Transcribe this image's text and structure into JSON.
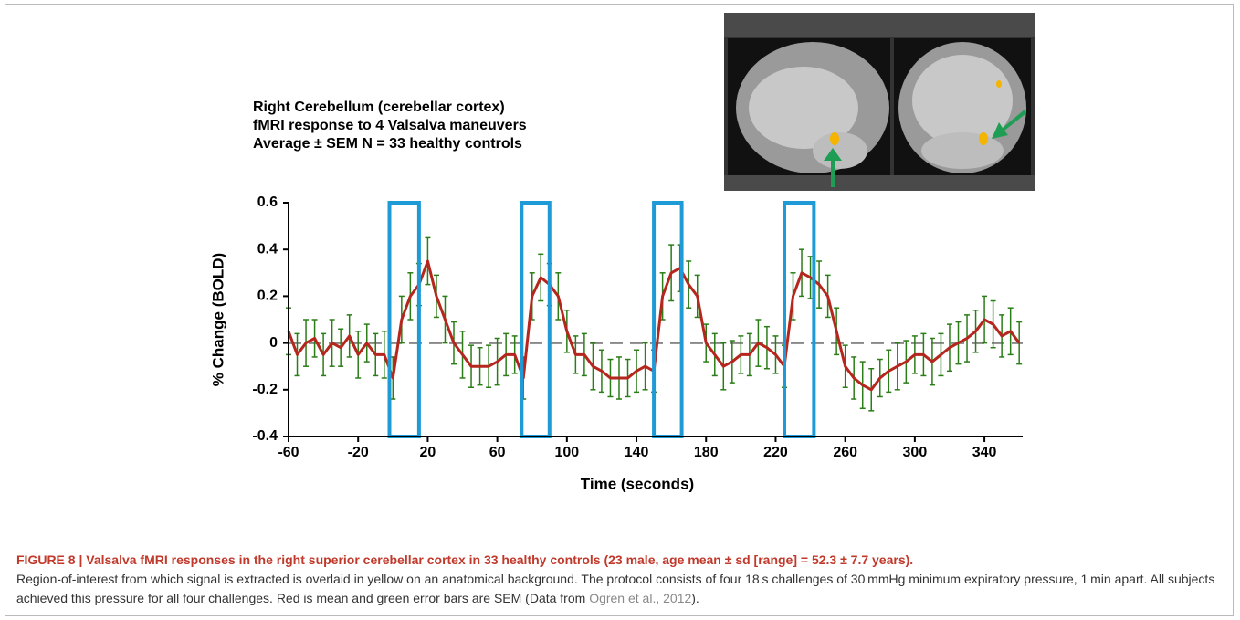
{
  "chart_data": {
    "type": "line",
    "title": [
      "Right Cerebellum (cerebellar cortex)",
      "fMRI response to 4 Valsalva maneuvers",
      "Average ± SEM N = 33 healthy controls"
    ],
    "x_label": "Time (seconds)",
    "y_label": "% Change (BOLD)",
    "xlim": [
      -60,
      362
    ],
    "ylim": [
      -0.4,
      0.6
    ],
    "xticks": [
      -60,
      -20,
      20,
      60,
      100,
      140,
      180,
      220,
      260,
      300,
      340
    ],
    "yticks": [
      -0.4,
      -0.2,
      0,
      0.2,
      0.4,
      0.6
    ],
    "reference_line": 0,
    "challenges": [
      [
        -2,
        15
      ],
      [
        74,
        90
      ],
      [
        150,
        166
      ],
      [
        225,
        242
      ]
    ],
    "challenge_color": "#1e9ad6",
    "x": [
      -60,
      -55,
      -50,
      -45,
      -40,
      -35,
      -30,
      -25,
      -20,
      -15,
      -10,
      -5,
      0,
      5,
      10,
      15,
      20,
      25,
      30,
      35,
      40,
      45,
      50,
      55,
      60,
      65,
      70,
      75,
      80,
      85,
      90,
      95,
      100,
      105,
      110,
      115,
      120,
      125,
      130,
      135,
      140,
      145,
      150,
      155,
      160,
      165,
      170,
      175,
      180,
      185,
      190,
      195,
      200,
      205,
      210,
      215,
      220,
      225,
      230,
      235,
      240,
      245,
      250,
      255,
      260,
      265,
      270,
      275,
      280,
      285,
      290,
      295,
      300,
      305,
      310,
      315,
      320,
      325,
      330,
      335,
      340,
      345,
      350,
      355,
      360
    ],
    "series": [
      {
        "color": "#b5261e",
        "error_color": "#2a7d17",
        "values": [
          0.05,
          -0.05,
          0,
          0.02,
          -0.05,
          0,
          -0.02,
          0.03,
          -0.05,
          0,
          -0.05,
          -0.05,
          -0.15,
          0.1,
          0.2,
          0.25,
          0.35,
          0.2,
          0.1,
          0,
          -0.05,
          -0.1,
          -0.1,
          -0.1,
          -0.08,
          -0.05,
          -0.05,
          -0.15,
          0.2,
          0.28,
          0.25,
          0.2,
          0.05,
          -0.05,
          -0.05,
          -0.1,
          -0.12,
          -0.15,
          -0.15,
          -0.15,
          -0.12,
          -0.1,
          -0.12,
          0.2,
          0.3,
          0.32,
          0.25,
          0.2,
          0,
          -0.05,
          -0.1,
          -0.08,
          -0.05,
          -0.05,
          0,
          -0.02,
          -0.05,
          -0.1,
          0.2,
          0.3,
          0.28,
          0.25,
          0.2,
          0.05,
          -0.1,
          -0.15,
          -0.18,
          -0.2,
          -0.15,
          -0.12,
          -0.1,
          -0.08,
          -0.05,
          -0.05,
          -0.08,
          -0.05,
          -0.02,
          0,
          0.02,
          0.05,
          0.1,
          0.08,
          0.03,
          0.05,
          0
        ],
        "errors": [
          0.1,
          0.09,
          0.1,
          0.08,
          0.09,
          0.1,
          0.08,
          0.09,
          0.1,
          0.08,
          0.09,
          0.1,
          0.09,
          0.1,
          0.1,
          0.09,
          0.1,
          0.09,
          0.1,
          0.09,
          0.1,
          0.09,
          0.08,
          0.09,
          0.1,
          0.09,
          0.08,
          0.09,
          0.1,
          0.1,
          0.09,
          0.1,
          0.09,
          0.08,
          0.09,
          0.1,
          0.09,
          0.08,
          0.09,
          0.08,
          0.09,
          0.1,
          0.09,
          0.1,
          0.12,
          0.1,
          0.1,
          0.09,
          0.08,
          0.09,
          0.1,
          0.09,
          0.08,
          0.09,
          0.1,
          0.09,
          0.08,
          0.09,
          0.1,
          0.1,
          0.09,
          0.1,
          0.09,
          0.1,
          0.09,
          0.09,
          0.1,
          0.09,
          0.08,
          0.09,
          0.1,
          0.09,
          0.08,
          0.09,
          0.1,
          0.09,
          0.1,
          0.09,
          0.1,
          0.09,
          0.1,
          0.1,
          0.09,
          0.1,
          0.09
        ]
      }
    ]
  },
  "caption": {
    "label": "FIGURE 8 | Valsalva fMRI responses in the right superior cerebellar cortex in 33 healthy controls (23 male, age mean ± sd [range] = 52.3 ± 7.7 years).",
    "text": "Region-of-interest from which signal is extracted is overlaid in yellow on an anatomical background. The protocol consists of four 18 s challenges of 30 mmHg minimum expiratory pressure, 1 min apart. All subjects achieved this pressure for all four challenges. Red is mean and green error bars are SEM (Data from",
    "reference": "Ogren et al., 2012",
    "closing": ")."
  }
}
